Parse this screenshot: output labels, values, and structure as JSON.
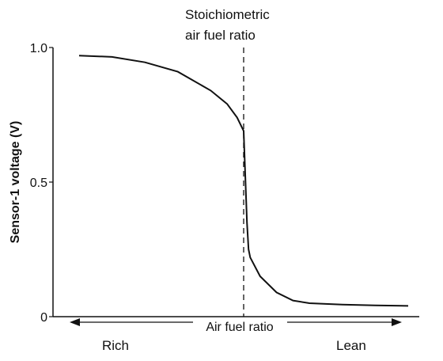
{
  "chart_data": {
    "type": "line",
    "title": "",
    "xlabel": "Air fuel ratio",
    "ylabel": "Sensor-1 voltage (V)",
    "ylim": [
      0,
      1.0
    ],
    "y_ticks": [
      "0",
      "0.5",
      "1.0"
    ],
    "x_ticks": [],
    "grid": false,
    "legend": "none",
    "xlim": [
      0,
      1
    ],
    "series": [
      {
        "x": [
          0.0,
          0.1,
          0.2,
          0.3,
          0.4,
          0.45,
          0.48,
          0.5,
          0.505,
          0.51,
          0.515,
          0.52,
          0.55,
          0.6,
          0.65,
          0.7,
          0.8,
          0.9,
          1.0
        ],
        "values": [
          0.97,
          0.965,
          0.945,
          0.91,
          0.84,
          0.79,
          0.74,
          0.69,
          0.52,
          0.35,
          0.25,
          0.22,
          0.15,
          0.09,
          0.06,
          0.05,
          0.045,
          0.042,
          0.04
        ]
      }
    ],
    "annotations": {
      "stoichiometric_line1": "Stoichiometric",
      "stoichiometric_line2": "air fuel ratio",
      "rich": "Rich",
      "lean": "Lean"
    },
    "stoichiometric_x": 0.5
  },
  "colors": {
    "ink": "#111111",
    "background": "#ffffff"
  }
}
